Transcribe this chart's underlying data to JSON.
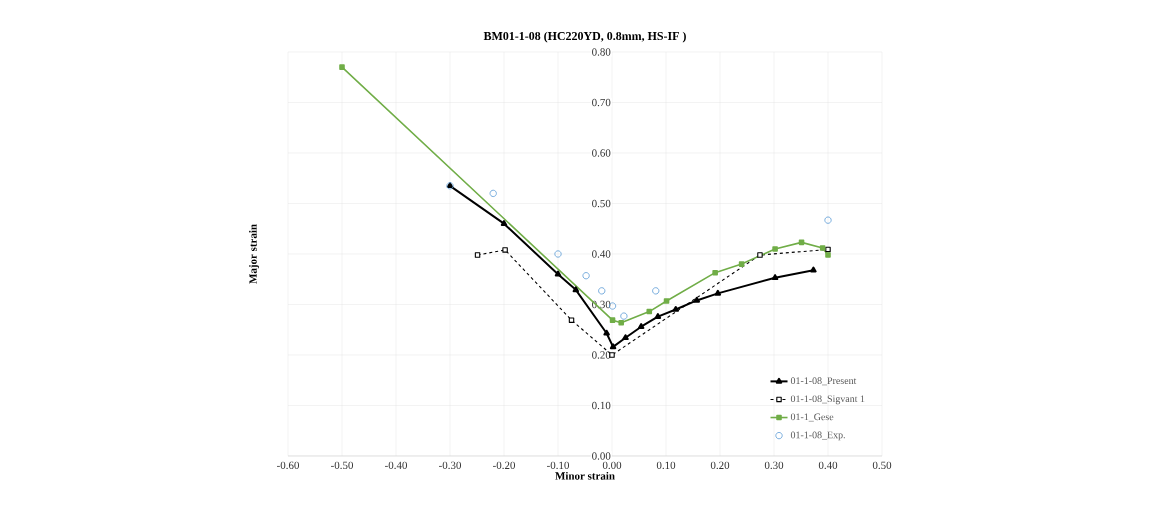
{
  "chart_data": {
    "type": "line",
    "title": "BM01-1-08 (HC220YD, 0.8mm, HS-IF )",
    "xlabel": "Minor strain",
    "ylabel": "Major strain",
    "xlim": [
      -0.6,
      0.5
    ],
    "ylim": [
      0,
      0.8
    ],
    "xticks": [
      {
        "value": -0.6,
        "label": "-0.60"
      },
      {
        "value": -0.5,
        "label": "-0.50"
      },
      {
        "value": -0.4,
        "label": "-0.40"
      },
      {
        "value": -0.3,
        "label": "-0.30"
      },
      {
        "value": -0.2,
        "label": "-0.20"
      },
      {
        "value": -0.1,
        "label": "-0.10"
      },
      {
        "value": 0,
        "label": "0.00"
      },
      {
        "value": 0.1,
        "label": "0.10"
      },
      {
        "value": 0.2,
        "label": "0.20"
      },
      {
        "value": 0.3,
        "label": "0.30"
      },
      {
        "value": 0.4,
        "label": "0.40"
      },
      {
        "value": 0.5,
        "label": "0.50"
      }
    ],
    "yticks": [
      {
        "value": 0,
        "label": "0.00"
      },
      {
        "value": 0.1,
        "label": "0.10"
      },
      {
        "value": 0.2,
        "label": "0.20"
      },
      {
        "value": 0.3,
        "label": "0.30"
      },
      {
        "value": 0.4,
        "label": "0.40"
      },
      {
        "value": 0.5,
        "label": "0.50"
      },
      {
        "value": 0.6,
        "label": "0.60"
      },
      {
        "value": 0.7,
        "label": "0.70"
      },
      {
        "value": 0.8,
        "label": "0.80"
      }
    ],
    "grid": true,
    "legend": "bottom right",
    "series": [
      {
        "name": "01-1-08_Present",
        "color": "#000000",
        "marker": "triangle",
        "line_style": "solid",
        "x": [
          -0.3,
          -0.2,
          -0.1,
          -0.067,
          -0.01,
          0.002,
          0.025,
          0.054,
          0.085,
          0.118,
          0.157,
          0.196,
          0.302,
          0.373
        ],
        "values": [
          0.535,
          0.46,
          0.36,
          0.329,
          0.243,
          0.216,
          0.234,
          0.256,
          0.276,
          0.29,
          0.308,
          0.322,
          0.353,
          0.368
        ]
      },
      {
        "name": "01-1-08_Sigvant 1",
        "color": "#000000",
        "marker": "square",
        "line_style": "dashed",
        "x": [
          -0.249,
          -0.198,
          -0.075,
          0.0,
          0.274,
          0.4
        ],
        "values": [
          0.398,
          0.408,
          0.269,
          0.2,
          0.398,
          0.409
        ]
      },
      {
        "name": "01-1_Gese",
        "color": "#70ad47",
        "marker": "square",
        "line_style": "solid",
        "x": [
          -0.5,
          0.001,
          0.017,
          0.069,
          0.101,
          0.191,
          0.24,
          0.302,
          0.351,
          0.39,
          0.4
        ],
        "values": [
          0.77,
          0.269,
          0.264,
          0.286,
          0.307,
          0.363,
          0.38,
          0.41,
          0.423,
          0.412,
          0.398
        ]
      },
      {
        "name": "01-1-08_Exp.",
        "type": "scatter",
        "color": "#5b9bd5",
        "marker": "circle",
        "x": [
          -0.3,
          -0.22,
          -0.1,
          -0.048,
          -0.019,
          0.001,
          0.022,
          0.081,
          0.4
        ],
        "values": [
          0.535,
          0.52,
          0.4,
          0.357,
          0.327,
          0.297,
          0.277,
          0.327,
          0.467
        ]
      }
    ]
  }
}
